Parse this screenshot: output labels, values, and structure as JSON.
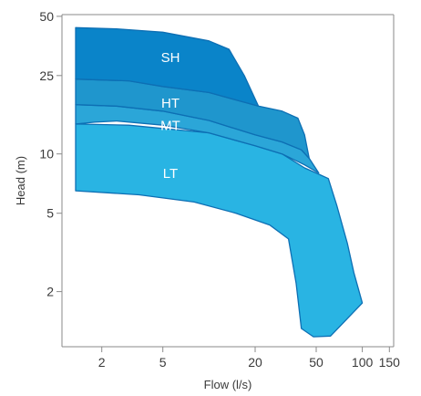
{
  "chart_data": {
    "type": "area",
    "title": "",
    "xlabel": "Flow (l/s)",
    "ylabel": "Head (m)",
    "x_scale": "log",
    "y_scale": "log",
    "xlim": [
      1.1,
      160
    ],
    "ylim": [
      1.05,
      51
    ],
    "x_ticks": [
      {
        "value": 2,
        "label": "2"
      },
      {
        "value": 5,
        "label": "5"
      },
      {
        "value": 20,
        "label": "20"
      },
      {
        "value": 50,
        "label": "50"
      },
      {
        "value": 100,
        "label": "100"
      },
      {
        "value": 150,
        "label": "150"
      }
    ],
    "y_ticks": [
      {
        "value": 50,
        "label": "50"
      },
      {
        "value": 25,
        "label": "25"
      },
      {
        "value": 10,
        "label": "10"
      },
      {
        "value": 5,
        "label": "5"
      },
      {
        "value": 2,
        "label": "2"
      }
    ],
    "grid": false,
    "legend": "none",
    "regions": [
      {
        "name": "LT",
        "color": "#29b4e3",
        "label_at": [
          5.6,
          7.9
        ],
        "points": [
          [
            1.35,
            6.5
          ],
          [
            3.5,
            6.2
          ],
          [
            8,
            5.7
          ],
          [
            15,
            5.0
          ],
          [
            25,
            4.35
          ],
          [
            33,
            3.7
          ],
          [
            37,
            2.2
          ],
          [
            40,
            1.3
          ],
          [
            48,
            1.18
          ],
          [
            62,
            1.19
          ],
          [
            100,
            1.75
          ],
          [
            88,
            2.5
          ],
          [
            80,
            3.5
          ],
          [
            68,
            5.5
          ],
          [
            60,
            7.5
          ],
          [
            50,
            8.0
          ],
          [
            42,
            8.5
          ],
          [
            30,
            10.0
          ],
          [
            20,
            11.0
          ],
          [
            10,
            12.8
          ],
          [
            3,
            14.0
          ],
          [
            1.35,
            14.2
          ]
        ]
      },
      {
        "name": "MT",
        "color": "#2ba6d8",
        "label_at": [
          5.6,
          13.8
        ],
        "points": [
          [
            1.35,
            14.2
          ],
          [
            1.8,
            14.5
          ],
          [
            2.5,
            14.7
          ],
          [
            5,
            14.0
          ],
          [
            10,
            12.8
          ],
          [
            20,
            11.0
          ],
          [
            30,
            10.0
          ],
          [
            42,
            8.8
          ],
          [
            52,
            8.0
          ],
          [
            45,
            9.5
          ],
          [
            40,
            10.5
          ],
          [
            30,
            11.5
          ],
          [
            20,
            12.5
          ],
          [
            10,
            14.8
          ],
          [
            5,
            16.5
          ],
          [
            2.5,
            17.5
          ],
          [
            1.35,
            17.8
          ]
        ]
      },
      {
        "name": "HT",
        "color": "#1f96cd",
        "label_at": [
          5.6,
          17.9
        ],
        "points": [
          [
            1.35,
            17.8
          ],
          [
            2.5,
            17.5
          ],
          [
            5,
            16.5
          ],
          [
            10,
            14.8
          ],
          [
            20,
            12.5
          ],
          [
            30,
            11.5
          ],
          [
            40,
            10.5
          ],
          [
            45,
            9.5
          ],
          [
            42,
            12.5
          ],
          [
            38,
            15.2
          ],
          [
            30,
            16.5
          ],
          [
            21,
            17.5
          ],
          [
            10,
            20.5
          ],
          [
            5,
            22.0
          ],
          [
            3,
            23.5
          ],
          [
            1.35,
            24.0
          ]
        ]
      },
      {
        "name": "SH",
        "color": "#0a84c9",
        "label_at": [
          5.6,
          30.5
        ],
        "points": [
          [
            1.35,
            24.0
          ],
          [
            3,
            23.5
          ],
          [
            5,
            22.0
          ],
          [
            10,
            20.5
          ],
          [
            21,
            17.5
          ],
          [
            17,
            25
          ],
          [
            13.5,
            34
          ],
          [
            10,
            37.5
          ],
          [
            5,
            41.5
          ],
          [
            2.5,
            43.2
          ],
          [
            1.35,
            43.8
          ]
        ]
      }
    ]
  }
}
